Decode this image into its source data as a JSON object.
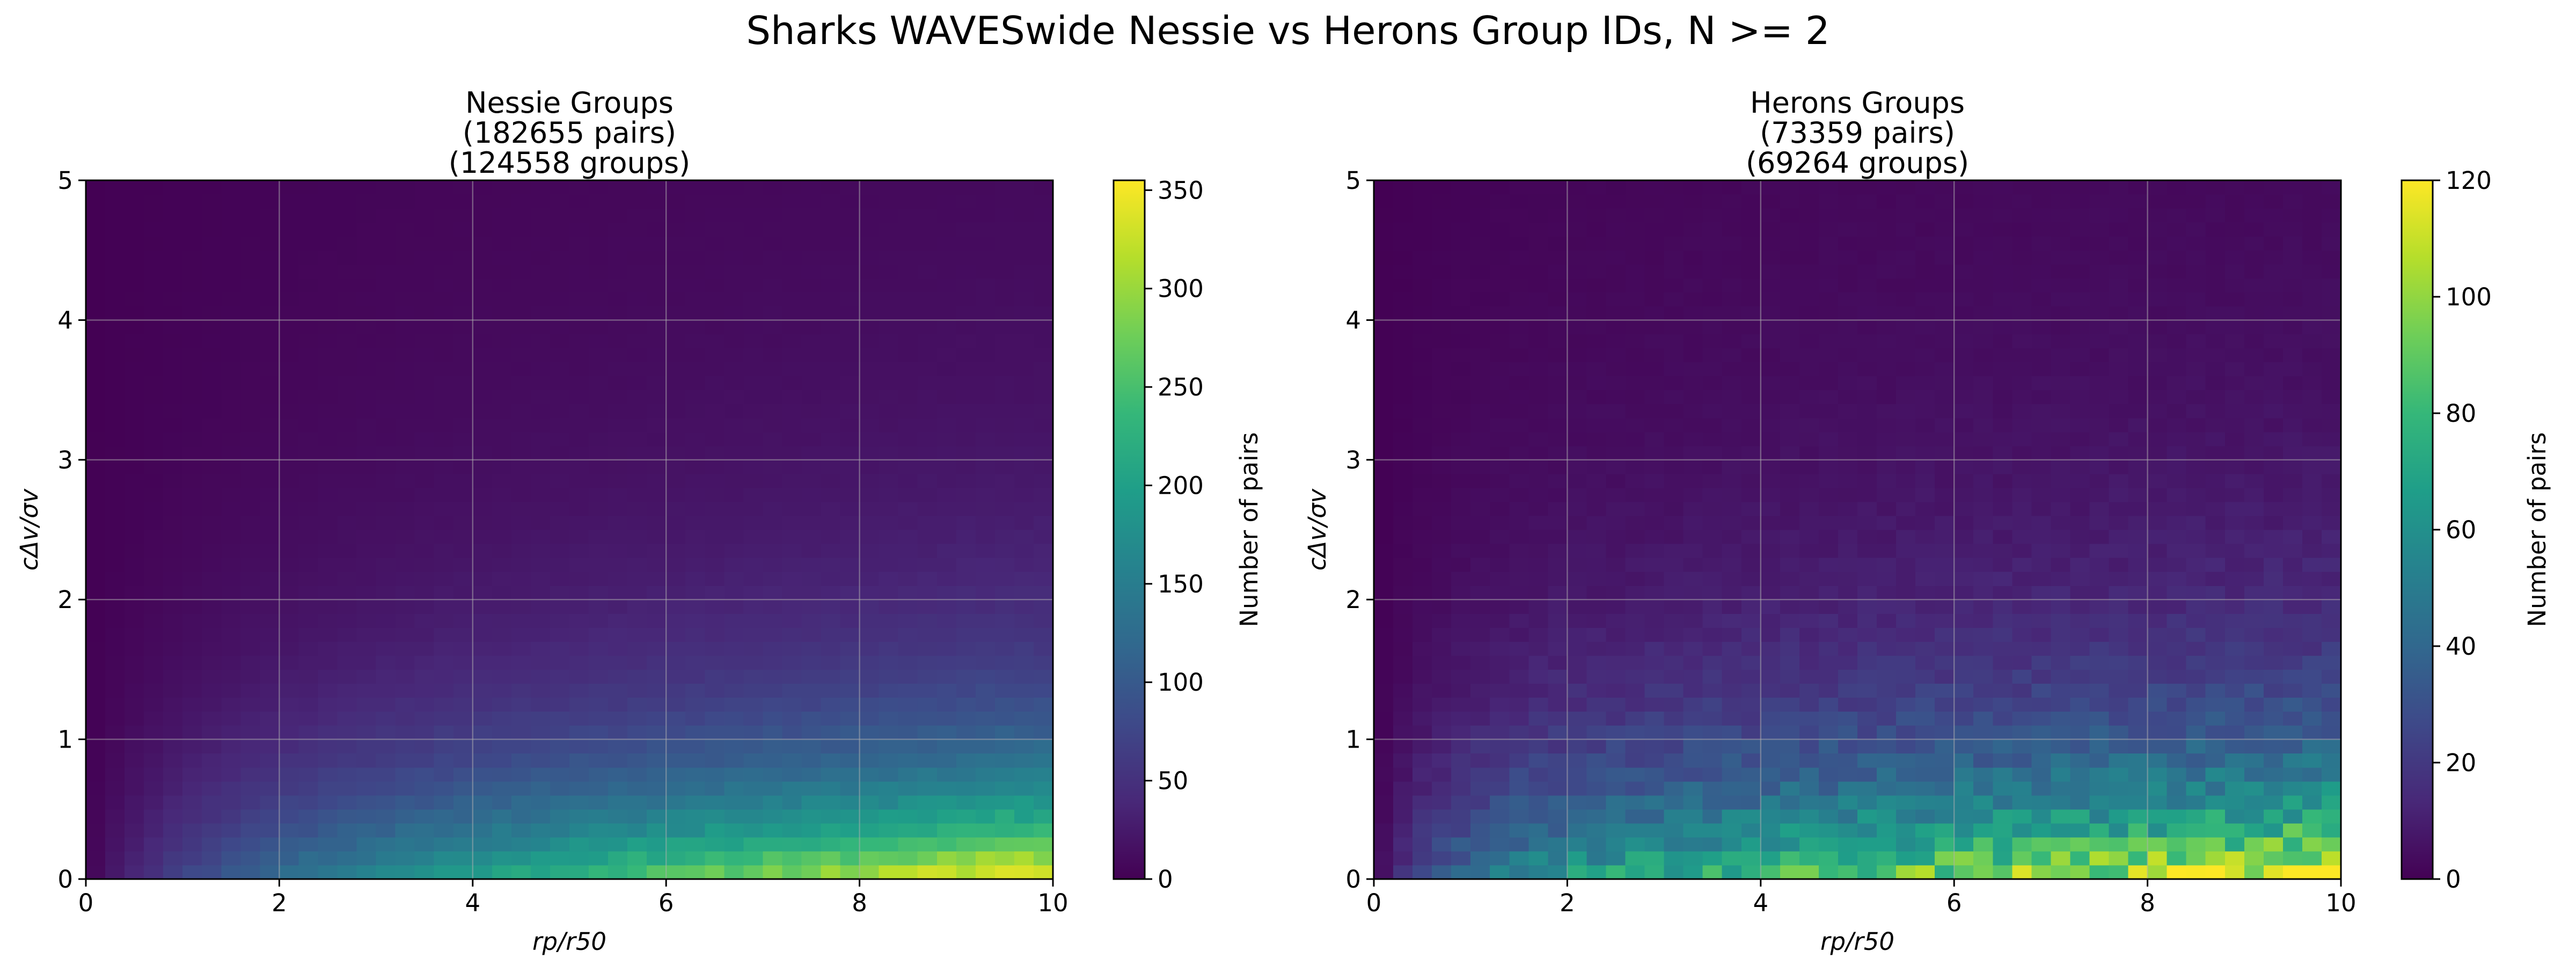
{
  "figure": {
    "title": "Sharks WAVESwide Nessie vs Herons Group IDs, N >= 2"
  },
  "colors": {
    "viridis": [
      "#440154",
      "#482878",
      "#3e4989",
      "#31688e",
      "#26828e",
      "#1f9e89",
      "#35b779",
      "#6ece58",
      "#b5de2b",
      "#fde725"
    ],
    "grid": "#b0b0b0",
    "frame": "#000000"
  },
  "chart_data": [
    {
      "type": "heatmap",
      "title_lines": [
        "Nessie Groups",
        "(182655 pairs)",
        "(124558 groups)"
      ],
      "xlabel": "rp/r50",
      "ylabel": "cΔv/σv",
      "xlim": [
        0,
        10
      ],
      "ylim": [
        0,
        5
      ],
      "x_ticks": [
        0,
        2,
        4,
        6,
        8,
        10
      ],
      "y_ticks": [
        0,
        1,
        2,
        3,
        4,
        5
      ],
      "grid": true,
      "bins": {
        "nx": 50,
        "ny": 50
      },
      "colorbar": {
        "label": "Number of pairs",
        "vmin": 0,
        "vmax": 355,
        "ticks": [
          0,
          50,
          100,
          150,
          200,
          250,
          300,
          350
        ]
      },
      "density_model": {
        "peak_counts_near_xmax_ymin": 355,
        "typical_counts_upper_half": 40,
        "counts_near_origin": 2
      }
    },
    {
      "type": "heatmap",
      "title_lines": [
        "Herons Groups",
        "(73359 pairs)",
        "(69264 groups)"
      ],
      "xlabel": "rp/r50",
      "ylabel": "cΔv/σv",
      "xlim": [
        0,
        10
      ],
      "ylim": [
        0,
        5
      ],
      "x_ticks": [
        0,
        2,
        4,
        6,
        8,
        10
      ],
      "y_ticks": [
        0,
        1,
        2,
        3,
        4,
        5
      ],
      "grid": true,
      "bins": {
        "nx": 50,
        "ny": 50
      },
      "colorbar": {
        "label": "Number of pairs",
        "vmin": 0,
        "vmax": 120,
        "ticks": [
          0,
          20,
          40,
          60,
          80,
          100,
          120
        ]
      },
      "density_model": {
        "peak_counts_near_xmax_ymin": 118,
        "typical_counts_upper_half": 15,
        "counts_near_origin": 3
      }
    }
  ]
}
